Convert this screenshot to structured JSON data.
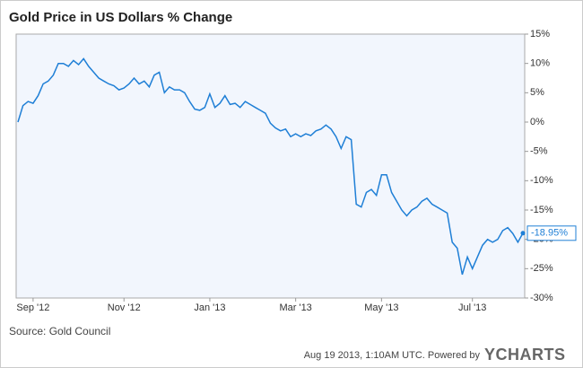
{
  "chart_data": {
    "type": "line",
    "title": "Gold Price in US Dollars % Change",
    "source": "Source: Gold Council",
    "footer": "Aug 19 2013, 1:10AM UTC. Powered by",
    "brand": "YCHARTS",
    "categories": [
      null,
      null,
      null,
      "Sep '12",
      null,
      null,
      null,
      null,
      null,
      null,
      null,
      null,
      null,
      null,
      null,
      null,
      null,
      null,
      null,
      null,
      null,
      "Nov '12",
      null,
      null,
      null,
      null,
      null,
      null,
      null,
      null,
      null,
      null,
      null,
      null,
      null,
      null,
      null,
      null,
      "Jan '13",
      null,
      null,
      null,
      null,
      null,
      null,
      null,
      null,
      null,
      null,
      null,
      null,
      null,
      null,
      null,
      null,
      "Mar '13",
      null,
      null,
      null,
      null,
      null,
      null,
      null,
      null,
      null,
      null,
      null,
      null,
      null,
      null,
      null,
      null,
      "May '13",
      null,
      null,
      null,
      null,
      null,
      null,
      null,
      null,
      null,
      null,
      null,
      null,
      null,
      null,
      null,
      null,
      null,
      "Jul '13",
      null,
      null,
      null,
      null,
      null,
      null,
      null,
      null,
      null,
      null
    ],
    "series": [
      {
        "name": "Gold Price in US Dollars % Change",
        "color": "#1f7fd6",
        "values": [
          0,
          2.8,
          3.5,
          3.2,
          4.5,
          6.5,
          7,
          8,
          10,
          10,
          9.5,
          10.5,
          9.8,
          10.8,
          9.5,
          8.5,
          7.5,
          7,
          6.5,
          6.2,
          5.5,
          5.8,
          6.5,
          7.5,
          6.5,
          7,
          6,
          8,
          8.5,
          5,
          6,
          5.5,
          5.5,
          5,
          3.5,
          2.2,
          2,
          2.5,
          4.8,
          2.5,
          3.2,
          4.5,
          3,
          3.2,
          2.5,
          3.5,
          3,
          2.5,
          2,
          1.5,
          -0.2,
          -1,
          -1.5,
          -1.2,
          -2.5,
          -2,
          -2.5,
          -2,
          -2.3,
          -1.5,
          -1.2,
          -0.5,
          -1.2,
          -2.5,
          -4.5,
          -2.5,
          -3,
          -14,
          -14.5,
          -12,
          -11.5,
          -12.5,
          -9,
          -9,
          -12,
          -13.5,
          -15,
          -16,
          -15,
          -14.5,
          -13.5,
          -13,
          -14,
          -14.5,
          -15,
          -15.5,
          -20.5,
          -21.5,
          -26,
          -23,
          -25,
          -23,
          -21,
          -20,
          -20.5,
          -20,
          -18.5,
          -18,
          -19,
          -20.5,
          -18.95
        ],
        "value_labels": [
          null,
          null,
          null,
          null,
          null,
          null,
          null,
          null,
          null,
          null,
          null,
          null,
          null,
          null,
          null,
          null,
          null,
          null,
          null,
          null,
          null,
          null,
          null,
          null,
          null,
          null,
          null,
          null,
          null,
          null,
          null,
          null,
          null,
          null,
          null,
          null,
          null,
          null,
          null,
          null,
          null,
          null,
          null,
          null,
          null,
          null,
          null,
          null,
          null,
          null,
          null,
          null,
          null,
          null,
          null,
          null,
          null,
          null,
          null,
          null,
          null,
          null,
          null,
          null,
          null,
          null,
          null,
          null,
          null,
          null,
          null,
          null,
          null,
          null,
          null,
          null,
          null,
          null,
          null,
          null,
          null,
          null,
          null,
          null,
          null,
          null,
          null,
          null,
          null,
          null,
          null,
          null,
          null,
          null,
          null,
          null,
          null,
          null,
          null,
          null,
          "-18.95%"
        ]
      }
    ],
    "ylim": [
      -30,
      15
    ],
    "yticks": [
      {
        "value": -30,
        "label": "-30%"
      },
      {
        "value": -25,
        "label": "-25%"
      },
      {
        "value": -20,
        "label": "-20%"
      },
      {
        "value": -15,
        "label": "-15%"
      },
      {
        "value": -10,
        "label": "-10%"
      },
      {
        "value": -5,
        "label": "-5%"
      },
      {
        "value": 0,
        "label": "0%"
      },
      {
        "value": 5,
        "label": "5%"
      },
      {
        "value": 10,
        "label": "10%"
      },
      {
        "value": 15,
        "label": "15%"
      }
    ],
    "grid": false
  }
}
